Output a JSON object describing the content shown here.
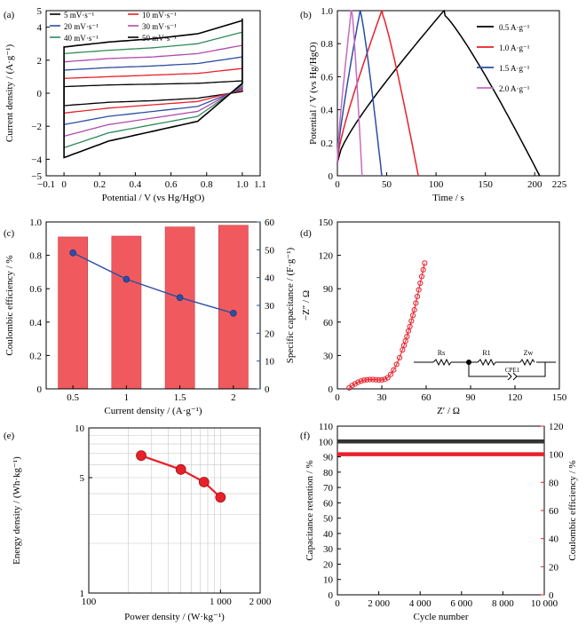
{
  "chart_data": [
    {
      "id": "a",
      "panel_label": "(a)",
      "type": "line",
      "xlabel": "Potential / V (vs Hg/HgO)",
      "ylabel": "Current density / (A·g⁻¹)",
      "xlim": [
        -0.1,
        1.1
      ],
      "ylim": [
        -5,
        5
      ],
      "xticks": [
        "−0.1",
        "0",
        "0.2",
        "0.4",
        "0.6",
        "0.8",
        "1.0",
        "1.1"
      ],
      "yticks": [
        "−5",
        "−4",
        "−2",
        "0",
        "2",
        "4",
        "5"
      ],
      "legend": "top-left",
      "series": [
        {
          "name": "5 mV·s⁻¹",
          "color": "#000000",
          "x_range": [
            0,
            1
          ],
          "upper": [
            0.4,
            0.5,
            0.55,
            0.6,
            0.75
          ],
          "lower": [
            -0.75,
            -0.55,
            -0.45,
            -0.3,
            0.1
          ]
        },
        {
          "name": "10 mV·s⁻¹",
          "color": "#e8202a",
          "x_range": [
            0,
            1
          ],
          "upper": [
            0.9,
            1.0,
            1.1,
            1.2,
            1.5
          ],
          "lower": [
            -1.2,
            -0.9,
            -0.7,
            -0.5,
            0.2
          ]
        },
        {
          "name": "20 mV·s⁻¹",
          "color": "#2c4ea3",
          "x_range": [
            0,
            1
          ],
          "upper": [
            1.4,
            1.55,
            1.65,
            1.8,
            2.2
          ],
          "lower": [
            -1.9,
            -1.4,
            -1.1,
            -0.8,
            0.3
          ]
        },
        {
          "name": "30 mV·s⁻¹",
          "color": "#b04aab",
          "x_range": [
            0,
            1
          ],
          "upper": [
            1.9,
            2.1,
            2.2,
            2.4,
            2.9
          ],
          "lower": [
            -2.6,
            -1.9,
            -1.5,
            -1.1,
            0.4
          ]
        },
        {
          "name": "40 mV·s⁻¹",
          "color": "#2e8a58",
          "x_range": [
            0,
            1
          ],
          "upper": [
            2.4,
            2.6,
            2.75,
            3.0,
            3.7
          ],
          "lower": [
            -3.3,
            -2.4,
            -1.9,
            -1.4,
            0.5
          ]
        },
        {
          "name": "50 mV·s⁻¹",
          "color": "#000000",
          "x_range": [
            0,
            1
          ],
          "upper": [
            2.8,
            3.1,
            3.3,
            3.6,
            4.4
          ],
          "lower": [
            -3.9,
            -2.9,
            -2.3,
            -1.7,
            0.6
          ]
        }
      ]
    },
    {
      "id": "b",
      "panel_label": "(b)",
      "type": "line",
      "xlabel": "Time / s",
      "ylabel": "Potential / V (vs Hg/HgO)",
      "xlim": [
        0,
        225
      ],
      "ylim": [
        0,
        1.0
      ],
      "xticks": [
        "0",
        "50",
        "100",
        "150",
        "200",
        "225"
      ],
      "yticks": [
        "0",
        "0.2",
        "0.4",
        "0.6",
        "0.8",
        "1.0"
      ],
      "legend": "top-right",
      "series": [
        {
          "name": "0.5 A·g⁻¹",
          "color": "#000000",
          "charge_end": 108,
          "discharge_end": 205
        },
        {
          "name": "1.0 A·g⁻¹",
          "color": "#e8202a",
          "charge_end": 45,
          "discharge_end": 82
        },
        {
          "name": "1.5 A·g⁻¹",
          "color": "#2c4ea3",
          "charge_end": 23,
          "discharge_end": 45
        },
        {
          "name": "2.0 A·g⁻¹",
          "color": "#c86ac2",
          "charge_end": 14,
          "discharge_end": 25
        }
      ]
    },
    {
      "id": "c",
      "panel_label": "(c)",
      "type": "bar",
      "xlabel": "Current density / (A·g⁻¹)",
      "ylabel": "Coulombic efficiency / %",
      "ylabel_right": "Specific capacitance / (F·g⁻¹)",
      "categories": [
        "0.5",
        "1",
        "1.5",
        "2"
      ],
      "ylim": [
        0,
        1.0
      ],
      "ylim_right": [
        0,
        60
      ],
      "yticks": [
        "0",
        "0.2",
        "0.4",
        "0.6",
        "0.8",
        "1.0"
      ],
      "yticks_right": [
        "0",
        "10",
        "20",
        "30",
        "40",
        "50",
        "60"
      ],
      "series": [
        {
          "kind": "bar",
          "axis": "left",
          "color": "#f05a5e",
          "values": [
            0.91,
            0.915,
            0.97,
            0.98
          ]
        },
        {
          "kind": "line",
          "axis": "right",
          "color": "#2c4ea3",
          "values": [
            48.9,
            39.4,
            32.8,
            27.2
          ]
        }
      ]
    },
    {
      "id": "d",
      "panel_label": "(d)",
      "type": "scatter",
      "xlabel": "Z′ / Ω",
      "ylabel": "−Z″ / Ω",
      "xlim": [
        0,
        150
      ],
      "ylim": [
        0,
        150
      ],
      "xticks": [
        "0",
        "30",
        "60",
        "90",
        "120",
        "150"
      ],
      "yticks": [
        "0",
        "30",
        "60",
        "90",
        "120",
        "150"
      ],
      "color": "#e8202a",
      "x": [
        8,
        10,
        12,
        14,
        16,
        18,
        20,
        22,
        24,
        26,
        28,
        30,
        32,
        34,
        36,
        38,
        40,
        42,
        44,
        45,
        46,
        47,
        48,
        49,
        50,
        51,
        52,
        53,
        54,
        55,
        56,
        57,
        58,
        59
      ],
      "y": [
        1,
        3,
        4.5,
        6,
        7,
        7.8,
        8.2,
        8.4,
        8.4,
        8.2,
        8,
        8,
        8.6,
        10,
        13,
        17,
        22,
        28,
        35,
        39,
        43,
        47,
        52,
        56,
        61,
        66,
        71,
        77,
        83,
        89,
        95,
        101,
        107,
        113
      ],
      "circuit_labels": {
        "rs": "Rs",
        "r1": "R1",
        "zw": "Zw",
        "cpe": "CPE1"
      }
    },
    {
      "id": "e",
      "panel_label": "(e)",
      "type": "scatter",
      "xlabel": "Power density / (W·kg⁻¹)",
      "ylabel": "Energy density / (Wh·kg⁻¹)",
      "xscale": "log",
      "yscale": "log",
      "xlim": [
        100,
        2000
      ],
      "ylim": [
        1,
        10
      ],
      "xticks": [
        "100",
        "1 000",
        "2 000"
      ],
      "yticks": [
        "1",
        "5",
        "10"
      ],
      "color": "#e8202a",
      "x": [
        250,
        500,
        750,
        1000
      ],
      "y": [
        6.8,
        5.6,
        4.7,
        3.8
      ]
    },
    {
      "id": "f",
      "panel_label": "(f)",
      "type": "line",
      "xlabel": "Cycle number",
      "ylabel": "Capacitance retention / %",
      "ylabel_right": "Coulombic efficiency / %",
      "xlim": [
        0,
        10000
      ],
      "ylim": [
        0,
        110
      ],
      "ylim_right": [
        0,
        120
      ],
      "xticks": [
        "0",
        "2 000",
        "4 000",
        "6 000",
        "8 000",
        "10 000"
      ],
      "yticks": [
        "0",
        "10",
        "20",
        "30",
        "40",
        "50",
        "60",
        "70",
        "80",
        "90",
        "100",
        "110"
      ],
      "yticks_right": [
        "0",
        "20",
        "40",
        "60",
        "80",
        "100",
        "120"
      ],
      "series": [
        {
          "axis": "left",
          "color": "#333333",
          "x": [
            0,
            10000
          ],
          "y": [
            100,
            100
          ]
        },
        {
          "axis": "right",
          "color": "#e8202a",
          "x": [
            0,
            10000
          ],
          "y": [
            100,
            100
          ]
        }
      ]
    }
  ]
}
